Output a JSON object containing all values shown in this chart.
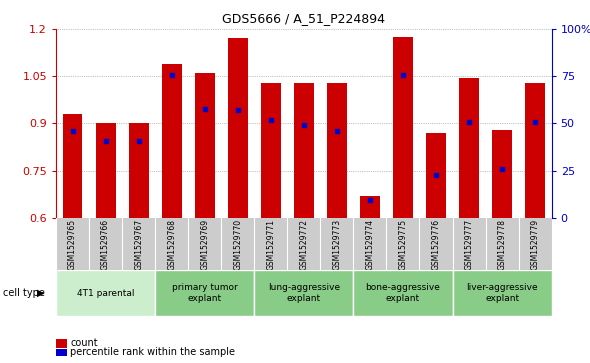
{
  "title": "GDS5666 / A_51_P224894",
  "samples": [
    "GSM1529765",
    "GSM1529766",
    "GSM1529767",
    "GSM1529768",
    "GSM1529769",
    "GSM1529770",
    "GSM1529771",
    "GSM1529772",
    "GSM1529773",
    "GSM1529774",
    "GSM1529775",
    "GSM1529776",
    "GSM1529777",
    "GSM1529778",
    "GSM1529779"
  ],
  "bar_heights": [
    0.93,
    0.9,
    0.9,
    1.09,
    1.06,
    1.17,
    1.03,
    1.03,
    1.03,
    0.67,
    1.175,
    0.87,
    1.045,
    0.88,
    1.03
  ],
  "blue_dot_y": [
    0.875,
    0.845,
    0.843,
    1.055,
    0.945,
    0.943,
    0.91,
    0.895,
    0.875,
    0.655,
    1.055,
    0.735,
    0.905,
    0.755,
    0.905
  ],
  "ylim": [
    0.6,
    1.2
  ],
  "yticks": [
    0.6,
    0.75,
    0.9,
    1.05,
    1.2
  ],
  "right_yticks": [
    0,
    25,
    50,
    75,
    100
  ],
  "bar_color": "#cc0000",
  "dot_color": "#0000cc",
  "bar_width": 0.6,
  "groups": [
    {
      "label": "4T1 parental",
      "start": 0,
      "end": 3,
      "color": "#cceecc"
    },
    {
      "label": "primary tumor\nexplant",
      "start": 3,
      "end": 6,
      "color": "#88cc88"
    },
    {
      "label": "lung-aggressive\nexplant",
      "start": 6,
      "end": 9,
      "color": "#88cc88"
    },
    {
      "label": "bone-aggressive\nexplant",
      "start": 9,
      "end": 12,
      "color": "#88cc88"
    },
    {
      "label": "liver-aggressive\nexplant",
      "start": 12,
      "end": 15,
      "color": "#88cc88"
    }
  ],
  "sample_bg": "#cccccc",
  "legend_count_label": "count",
  "legend_pct_label": "percentile rank within the sample",
  "cell_type_label": "cell type",
  "grid_color": "#888888",
  "axis_color_left": "#cc0000",
  "axis_color_right": "#0000cc",
  "background_color": "#ffffff"
}
